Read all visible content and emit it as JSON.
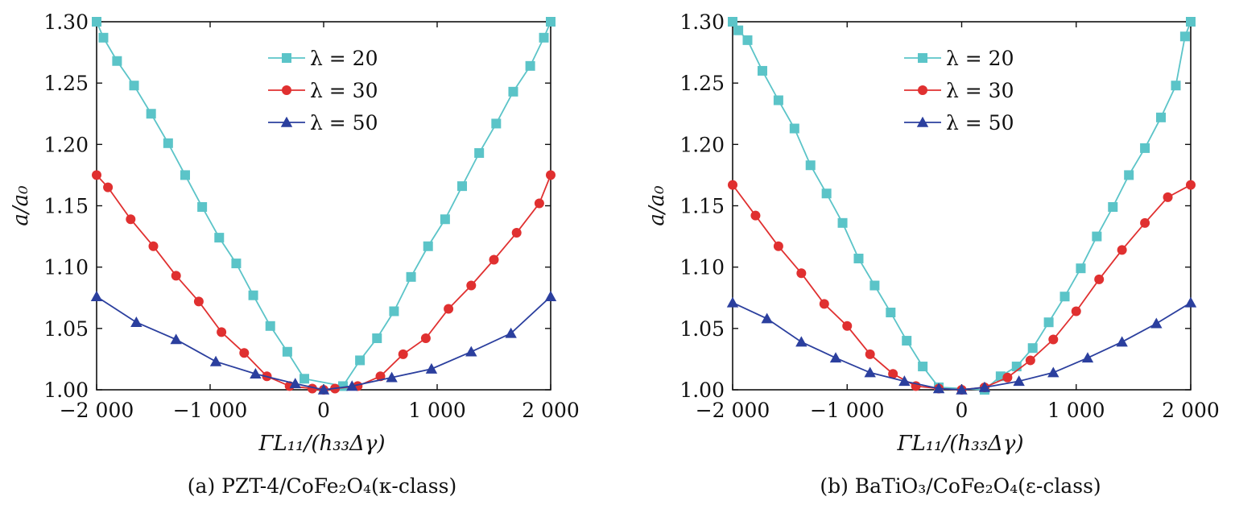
{
  "chart_data": [
    {
      "type": "line",
      "caption": "(a) PZT-4/CoFe₂O₄(κ-class)",
      "xlabel": "ΓL₁₁/(h₃₃Δγ)",
      "ylabel": "a/a₀",
      "xlim": [
        -2000,
        2000
      ],
      "ylim": [
        1.0,
        1.3
      ],
      "xticks": [
        -2000,
        -1000,
        0,
        1000,
        2000
      ],
      "xtick_labels": [
        "−2 000",
        "−1 000",
        "0",
        "1 000",
        "2 000"
      ],
      "yticks": [
        1.0,
        1.05,
        1.1,
        1.15,
        1.2,
        1.25,
        1.3
      ],
      "ytick_labels": [
        "1.00",
        "1.05",
        "1.10",
        "1.15",
        "1.20",
        "1.25",
        "1.30"
      ],
      "legend": "top-center",
      "series": [
        {
          "name": "λ = 20",
          "color": "#5bc4c8",
          "marker": "square",
          "x": [
            -2000,
            -1940,
            -1820,
            -1670,
            -1520,
            -1370,
            -1220,
            -1070,
            -920,
            -770,
            -620,
            -470,
            -320,
            -170,
            170,
            320,
            470,
            620,
            770,
            920,
            1070,
            1220,
            1370,
            1520,
            1670,
            1820,
            1940,
            2000
          ],
          "y": [
            1.3,
            1.287,
            1.268,
            1.248,
            1.225,
            1.201,
            1.175,
            1.149,
            1.124,
            1.103,
            1.077,
            1.052,
            1.031,
            1.009,
            1.003,
            1.024,
            1.042,
            1.064,
            1.092,
            1.117,
            1.139,
            1.166,
            1.193,
            1.217,
            1.243,
            1.264,
            1.287,
            1.3
          ]
        },
        {
          "name": "λ = 30",
          "color": "#e03030",
          "marker": "circle",
          "x": [
            -2000,
            -1900,
            -1700,
            -1500,
            -1300,
            -1100,
            -900,
            -700,
            -500,
            -300,
            -100,
            0,
            100,
            300,
            500,
            700,
            900,
            1100,
            1300,
            1500,
            1700,
            1900,
            2000
          ],
          "y": [
            1.175,
            1.165,
            1.139,
            1.117,
            1.093,
            1.072,
            1.047,
            1.03,
            1.011,
            1.003,
            1.001,
            1.0,
            1.001,
            1.003,
            1.011,
            1.029,
            1.042,
            1.066,
            1.085,
            1.106,
            1.128,
            1.152,
            1.175
          ]
        },
        {
          "name": "λ = 50",
          "color": "#2b3f9e",
          "marker": "triangle",
          "x": [
            -2000,
            -1650,
            -1300,
            -950,
            -600,
            -250,
            0,
            250,
            600,
            950,
            1300,
            1650,
            2000
          ],
          "y": [
            1.076,
            1.055,
            1.041,
            1.023,
            1.013,
            1.005,
            1.0,
            1.003,
            1.01,
            1.017,
            1.031,
            1.046,
            1.076
          ]
        }
      ]
    },
    {
      "type": "line",
      "caption": "(b) BaTiO₃/CoFe₂O₄(ε-class)",
      "xlabel": "ΓL₁₁/(h₃₃Δγ)",
      "ylabel": "a/a₀",
      "xlim": [
        -2000,
        2000
      ],
      "ylim": [
        1.0,
        1.3
      ],
      "xticks": [
        -2000,
        -1000,
        0,
        1000,
        2000
      ],
      "xtick_labels": [
        "−2 000",
        "−1 000",
        "0",
        "1 000",
        "2 000"
      ],
      "yticks": [
        1.0,
        1.05,
        1.1,
        1.15,
        1.2,
        1.25,
        1.3
      ],
      "ytick_labels": [
        "1.00",
        "1.05",
        "1.10",
        "1.15",
        "1.20",
        "1.25",
        "1.30"
      ],
      "legend": "top-center",
      "series": [
        {
          "name": "λ = 20",
          "color": "#5bc4c8",
          "marker": "square",
          "x": [
            -2000,
            -1950,
            -1870,
            -1740,
            -1600,
            -1460,
            -1320,
            -1180,
            -1040,
            -900,
            -760,
            -620,
            -480,
            -340,
            -200,
            200,
            340,
            480,
            620,
            760,
            900,
            1040,
            1180,
            1320,
            1460,
            1600,
            1740,
            1870,
            1950,
            2000
          ],
          "y": [
            1.3,
            1.293,
            1.285,
            1.26,
            1.236,
            1.213,
            1.183,
            1.16,
            1.136,
            1.107,
            1.085,
            1.063,
            1.04,
            1.019,
            1.002,
            1.0,
            1.011,
            1.019,
            1.034,
            1.055,
            1.076,
            1.099,
            1.125,
            1.149,
            1.175,
            1.197,
            1.222,
            1.248,
            1.288,
            1.3
          ]
        },
        {
          "name": "λ = 30",
          "color": "#e03030",
          "marker": "circle",
          "x": [
            -2000,
            -1800,
            -1600,
            -1400,
            -1200,
            -1000,
            -800,
            -600,
            -400,
            -200,
            0,
            200,
            400,
            600,
            800,
            1000,
            1200,
            1400,
            1600,
            1800,
            2000
          ],
          "y": [
            1.167,
            1.142,
            1.117,
            1.095,
            1.07,
            1.052,
            1.029,
            1.013,
            1.003,
            1.001,
            1.0,
            1.002,
            1.01,
            1.024,
            1.041,
            1.064,
            1.09,
            1.114,
            1.136,
            1.157,
            1.167
          ]
        },
        {
          "name": "λ = 50",
          "color": "#2b3f9e",
          "marker": "triangle",
          "x": [
            -2000,
            -1700,
            -1400,
            -1100,
            -800,
            -500,
            -200,
            0,
            200,
            500,
            800,
            1100,
            1400,
            1700,
            2000
          ],
          "y": [
            1.071,
            1.058,
            1.039,
            1.026,
            1.014,
            1.007,
            1.001,
            1.0,
            1.002,
            1.007,
            1.014,
            1.026,
            1.039,
            1.054,
            1.071
          ]
        }
      ]
    }
  ]
}
